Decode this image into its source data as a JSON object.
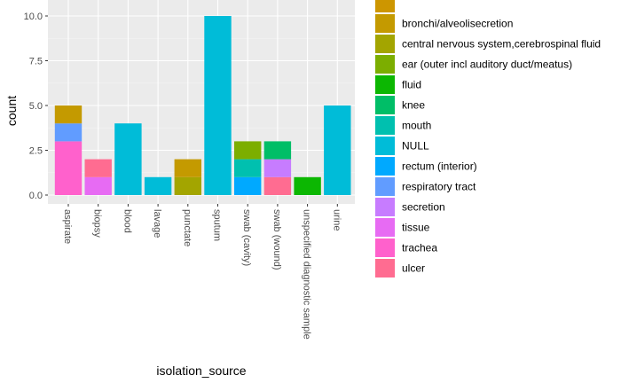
{
  "chart_data": {
    "type": "bar",
    "stacked": true,
    "xlabel": "isolation_source",
    "ylabel": "count",
    "ylim": [
      0,
      10.5
    ],
    "yticks": [
      0.0,
      2.5,
      5.0,
      7.5,
      10.0
    ],
    "ytick_labels": [
      "0.0",
      "2.5",
      "5.0",
      "7.5",
      "10.0"
    ],
    "grid": true,
    "legend_position": "right",
    "categories": [
      "aspirate",
      "biopsy",
      "blood",
      "lavage",
      "punctate",
      "sputum",
      "swab (cavity)",
      "swab (wound)",
      "unspecified diagnostic sample",
      "urine"
    ],
    "legend": [
      {
        "label": "",
        "color": "#CD9600"
      },
      {
        "label": "bronchi/alveolisecretion",
        "color": "#C49A00"
      },
      {
        "label": "central nervous system,cerebrospinal fluid",
        "color": "#A3A500"
      },
      {
        "label": "ear (outer incl auditory duct/meatus)",
        "color": "#7CAE00"
      },
      {
        "label": "fluid",
        "color": "#0CB702"
      },
      {
        "label": "knee",
        "color": "#00BE67"
      },
      {
        "label": "mouth",
        "color": "#00C0AF"
      },
      {
        "label": "NULL",
        "color": "#00BCD8"
      },
      {
        "label": "rectum (interior)",
        "color": "#00A9FF"
      },
      {
        "label": "respiratory tract",
        "color": "#619CFF"
      },
      {
        "label": "secretion",
        "color": "#C77CFF"
      },
      {
        "label": "tissue",
        "color": "#E76BF3"
      },
      {
        "label": "trachea",
        "color": "#FF61CC"
      },
      {
        "label": "ulcer",
        "color": "#FF6C91"
      }
    ],
    "stacks": [
      [
        {
          "series": "trachea",
          "value": 3
        },
        {
          "series": "respiratory tract",
          "value": 1
        },
        {
          "series": "bronchi/alveolisecretion",
          "value": 1
        }
      ],
      [
        {
          "series": "tissue",
          "value": 1
        },
        {
          "series": "ulcer",
          "value": 1
        }
      ],
      [
        {
          "series": "NULL",
          "value": 4
        }
      ],
      [
        {
          "series": "NULL",
          "value": 1
        }
      ],
      [
        {
          "series": "central nervous system,cerebrospinal fluid",
          "value": 1
        },
        {
          "series": "bronchi/alveolisecretion",
          "value": 1
        }
      ],
      [
        {
          "series": "NULL",
          "value": 10
        }
      ],
      [
        {
          "series": "rectum (interior)",
          "value": 1
        },
        {
          "series": "mouth",
          "value": 1
        },
        {
          "series": "ear (outer incl auditory duct/meatus)",
          "value": 1
        }
      ],
      [
        {
          "series": "ulcer",
          "value": 1
        },
        {
          "series": "secretion",
          "value": 1
        },
        {
          "series": "knee",
          "value": 1
        }
      ],
      [
        {
          "series": "fluid",
          "value": 1
        }
      ],
      [
        {
          "series": "NULL",
          "value": 5
        }
      ]
    ]
  }
}
